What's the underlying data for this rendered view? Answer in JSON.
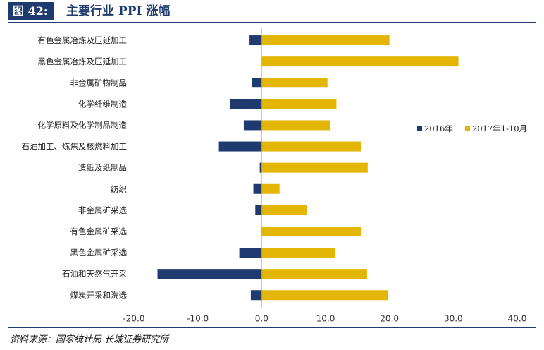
{
  "header": {
    "figure_label": "图 42:",
    "title": "主要行业 PPI 涨幅"
  },
  "source": "资料来源：国家统计局  长城证券研究所",
  "colors": {
    "s2016": "#1f3a6e",
    "s2017": "#e3b505",
    "brand": "#1f3a6e"
  },
  "chart_data": {
    "type": "bar",
    "orientation": "horizontal",
    "categories": [
      "有色金属冶炼及压延加工",
      "黑色金属冶炼及压延加工",
      "非金属矿物制品",
      "化学纤维制造",
      "化学原料及化学制品制造",
      "石油加工、炼焦及核燃料加工",
      "造纸及纸制品",
      "纺织",
      "非金属矿采选",
      "有色金属矿采选",
      "黑色金属矿采选",
      "石油和天然气开采",
      "煤炭开采和洗选"
    ],
    "series": [
      {
        "name": "2016年",
        "values": [
          -1.9,
          0.0,
          -1.5,
          -5.0,
          -2.8,
          -6.7,
          -0.3,
          -1.3,
          -1.0,
          0.0,
          -3.5,
          -16.3,
          -1.7
        ]
      },
      {
        "name": "2017年1-10月",
        "values": [
          20.0,
          30.8,
          10.3,
          11.7,
          10.7,
          15.6,
          16.6,
          2.8,
          7.1,
          15.6,
          11.5,
          16.5,
          19.8
        ]
      }
    ],
    "xlim": [
      -20,
      40
    ],
    "xticks": [
      "-20.0",
      "-10.0",
      "0.0",
      "10.0",
      "20.0",
      "30.0",
      "40.0"
    ],
    "xtick_values": [
      -20,
      -10,
      0,
      10,
      20,
      30,
      40
    ],
    "legend_position": "right"
  }
}
